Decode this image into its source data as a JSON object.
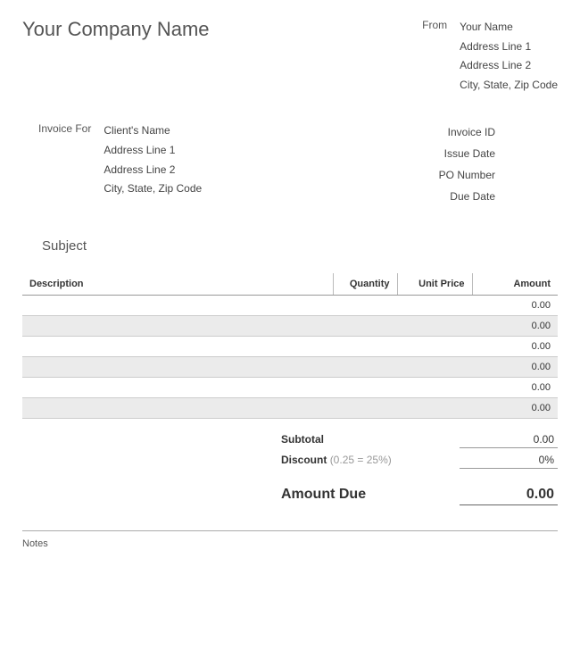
{
  "header": {
    "company_name": "Your Company Name",
    "from_label": "From",
    "from_lines": [
      "Your Name",
      "Address Line 1",
      "Address Line 2",
      "City, State, Zip Code"
    ]
  },
  "invoice_for": {
    "label": "Invoice For",
    "lines": [
      "Client's Name",
      "Address Line 1",
      "Address Line 2",
      "City, State, Zip Code"
    ]
  },
  "meta": {
    "labels": [
      "Invoice ID",
      "Issue Date",
      "PO Number",
      "Due Date"
    ]
  },
  "subject_label": "Subject",
  "table": {
    "columns": {
      "description": "Description",
      "quantity": "Quantity",
      "unit_price": "Unit Price",
      "amount": "Amount"
    },
    "rows": [
      {
        "amount": "0.00",
        "shaded": false
      },
      {
        "amount": "0.00",
        "shaded": true
      },
      {
        "amount": "0.00",
        "shaded": false
      },
      {
        "amount": "0.00",
        "shaded": true
      },
      {
        "amount": "0.00",
        "shaded": false
      },
      {
        "amount": "0.00",
        "shaded": true
      }
    ]
  },
  "totals": {
    "subtotal_label": "Subtotal",
    "subtotal_value": "0.00",
    "discount_label": "Discount",
    "discount_hint": "(0.25 = 25%)",
    "discount_value": "0%",
    "amount_due_label": "Amount Due",
    "amount_due_value": "0.00"
  },
  "notes_label": "Notes",
  "colors": {
    "background": "#ffffff",
    "text": "#333333",
    "muted": "#555555",
    "hint": "#999999",
    "border": "#999999",
    "shaded_row": "#ebebeb"
  }
}
